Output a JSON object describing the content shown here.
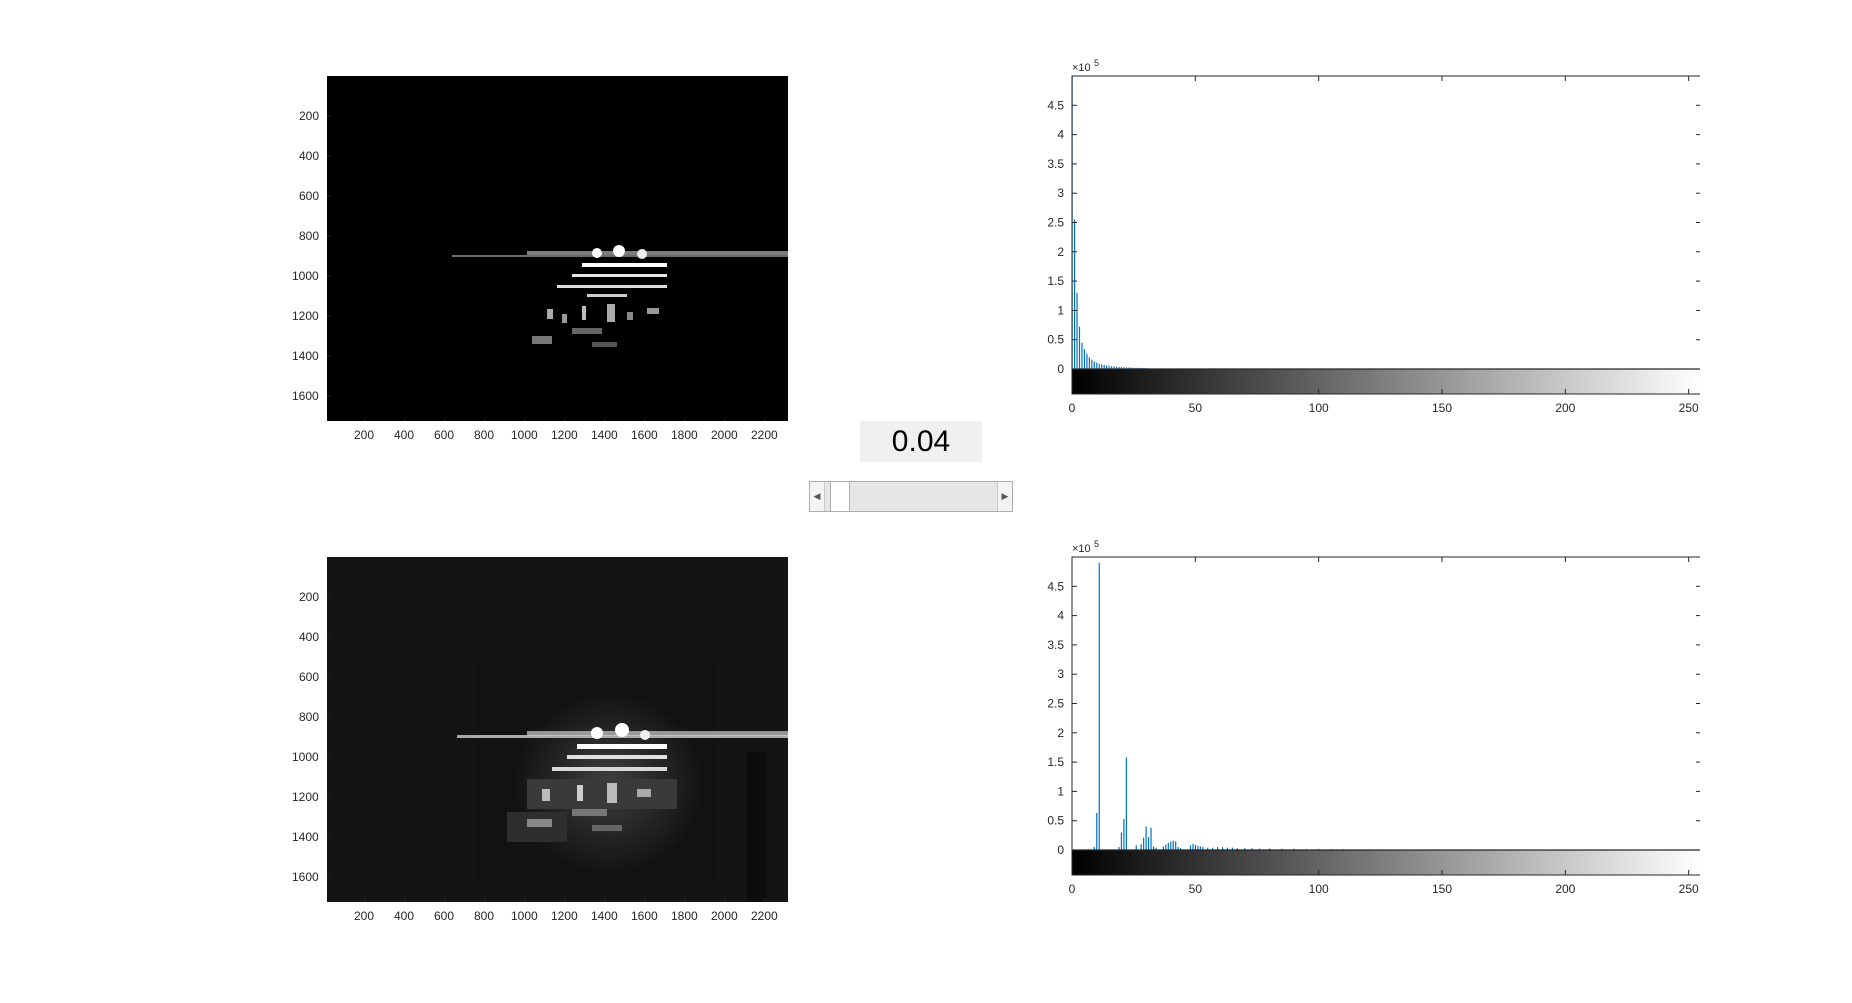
{
  "threshold_value": "0.04",
  "slider": {
    "value": 0.04,
    "min": 0,
    "max": 1
  },
  "image_axes": {
    "x_ticks": [
      "200",
      "400",
      "600",
      "800",
      "1000",
      "1200",
      "1400",
      "1600",
      "1800",
      "2000",
      "2200"
    ],
    "y_ticks": [
      "200",
      "400",
      "600",
      "800",
      "1000",
      "1200",
      "1400",
      "1600"
    ]
  },
  "colors": {
    "bar": "#0072bd",
    "axis": "#262626",
    "valuebox": "#f0f0f0"
  },
  "chart_data": [
    {
      "type": "bar",
      "name": "histogram-top",
      "exponent_label": "×10",
      "exponent_power": "5",
      "xlim": [
        0,
        255
      ],
      "ylim": [
        0,
        500000
      ],
      "x_ticks": [
        "0",
        "50",
        "100",
        "150",
        "200",
        "250"
      ],
      "y_ticks": [
        "0",
        "0.5",
        "1",
        "1.5",
        "2",
        "2.5",
        "3",
        "3.5",
        "4",
        "4.5"
      ],
      "x": [
        0,
        1,
        2,
        3,
        4,
        5,
        6,
        7,
        8,
        9,
        10,
        11,
        12,
        13,
        14,
        15,
        16,
        17,
        18,
        19,
        20,
        21,
        22,
        23,
        24,
        25,
        26,
        27,
        28,
        29,
        30
      ],
      "values": [
        500000,
        255000,
        130000,
        72000,
        45000,
        34000,
        26000,
        20000,
        16000,
        13000,
        11000,
        9000,
        8000,
        7000,
        6000,
        5200,
        4600,
        4200,
        3800,
        3500,
        3200,
        3000,
        2800,
        2600,
        2400,
        2200,
        2000,
        1900,
        1800,
        1700,
        1600
      ]
    },
    {
      "type": "bar",
      "name": "histogram-bottom",
      "exponent_label": "×10",
      "exponent_power": "5",
      "xlim": [
        0,
        255
      ],
      "ylim": [
        0,
        500000
      ],
      "x_ticks": [
        "0",
        "50",
        "100",
        "150",
        "200",
        "250"
      ],
      "y_ticks": [
        "0",
        "0.5",
        "1",
        "1.5",
        "2",
        "2.5",
        "3",
        "3.5",
        "4",
        "4.5"
      ],
      "x": [
        9,
        10,
        11,
        19,
        20,
        21,
        22,
        26,
        28,
        29,
        30,
        31,
        32,
        33,
        34,
        37,
        38,
        39,
        40,
        41,
        42,
        43,
        44,
        48,
        49,
        50,
        51,
        52,
        53,
        55,
        57,
        59,
        61,
        63,
        65,
        67,
        70,
        73,
        76,
        80,
        85,
        90,
        95,
        100,
        105,
        110,
        120
      ],
      "values": [
        5000,
        63000,
        490000,
        5000,
        30000,
        53000,
        158000,
        8000,
        10000,
        21000,
        40000,
        22000,
        38000,
        6000,
        4000,
        6000,
        9000,
        12000,
        14000,
        16000,
        15000,
        5000,
        3000,
        8000,
        10000,
        9000,
        7000,
        6000,
        5000,
        4000,
        4000,
        5000,
        5000,
        4000,
        4000,
        3000,
        3000,
        3000,
        2500,
        2500,
        2000,
        2000,
        1800,
        1800,
        1600,
        1500,
        1200
      ]
    }
  ]
}
